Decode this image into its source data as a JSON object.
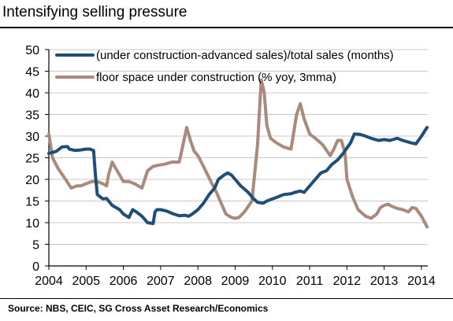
{
  "title": "Intensifying selling pressure",
  "source": "Source: NBS, CEIC, SG Cross Asset Research/Economics",
  "colors": {
    "series_blue": "#1f4e79",
    "series_brown": "#a98a7c",
    "grid": "#c8c8c8",
    "axis": "#000000"
  },
  "chart_data": {
    "type": "line",
    "title": "Intensifying selling pressure",
    "xlabel": "",
    "ylabel": "",
    "xlim": [
      2004.0,
      2014.17
    ],
    "ylim": [
      0,
      50
    ],
    "x_ticks": [
      "2004",
      "2005",
      "2006",
      "2007",
      "2008",
      "2009",
      "2010",
      "2011",
      "2012",
      "2013",
      "2014"
    ],
    "y_ticks": [
      "0",
      "5",
      "10",
      "15",
      "20",
      "25",
      "30",
      "35",
      "40",
      "45",
      "50"
    ],
    "grid": "horizontal",
    "legend_position": "top-left",
    "series": [
      {
        "name": "(under construction-advanced sales)/total sales (months)",
        "color": "#1f4e79",
        "x": [
          2004.0,
          2004.2,
          2004.35,
          2004.5,
          2004.55,
          2004.7,
          2004.85,
          2005.0,
          2005.1,
          2005.2,
          2005.25,
          2005.3,
          2005.45,
          2005.55,
          2005.7,
          2005.9,
          2006.0,
          2006.15,
          2006.25,
          2006.35,
          2006.5,
          2006.65,
          2006.8,
          2006.85,
          2006.9,
          2007.0,
          2007.15,
          2007.35,
          2007.5,
          2007.65,
          2007.75,
          2007.85,
          2008.0,
          2008.15,
          2008.3,
          2008.45,
          2008.55,
          2008.7,
          2008.8,
          2008.9,
          2009.0,
          2009.15,
          2009.35,
          2009.5,
          2009.6,
          2009.75,
          2009.85,
          2010.0,
          2010.1,
          2010.3,
          2010.5,
          2010.6,
          2010.75,
          2010.85,
          2011.0,
          2011.15,
          2011.3,
          2011.45,
          2011.6,
          2011.75,
          2011.9,
          2012.1,
          2012.2,
          2012.35,
          2012.5,
          2012.65,
          2012.85,
          2013.0,
          2013.15,
          2013.35,
          2013.5,
          2013.7,
          2013.85,
          2014.0,
          2014.15
        ],
        "values": [
          26.0,
          26.5,
          27.5,
          27.6,
          27.0,
          26.7,
          26.8,
          27.0,
          27.0,
          26.7,
          21.0,
          16.5,
          15.5,
          15.6,
          14.0,
          13.0,
          12.0,
          11.2,
          13.0,
          12.5,
          11.5,
          10.0,
          9.8,
          12.5,
          13.0,
          13.0,
          12.7,
          12.0,
          11.6,
          11.7,
          11.5,
          12.0,
          13.0,
          14.5,
          16.5,
          18.0,
          20.0,
          21.0,
          21.5,
          21.0,
          20.0,
          18.5,
          17.0,
          15.5,
          14.7,
          14.5,
          15.0,
          15.5,
          15.8,
          16.5,
          16.7,
          17.0,
          17.3,
          17.0,
          18.5,
          20.0,
          21.5,
          22.0,
          23.5,
          24.5,
          26.0,
          28.5,
          30.5,
          30.4,
          30.0,
          29.5,
          29.0,
          29.2,
          29.0,
          29.5,
          29.0,
          28.5,
          28.2,
          30.0,
          32.0
        ]
      },
      {
        "name": "floor space under construction (% yoy, 3mma)",
        "color": "#a98a7c",
        "x": [
          2004.0,
          2004.1,
          2004.25,
          2004.45,
          2004.6,
          2004.75,
          2004.85,
          2005.0,
          2005.15,
          2005.3,
          2005.45,
          2005.55,
          2005.6,
          2005.7,
          2005.8,
          2005.9,
          2006.0,
          2006.15,
          2006.3,
          2006.5,
          2006.65,
          2006.8,
          2006.95,
          2007.1,
          2007.3,
          2007.5,
          2007.6,
          2007.7,
          2007.8,
          2007.9,
          2008.0,
          2008.15,
          2008.35,
          2008.5,
          2008.65,
          2008.75,
          2008.9,
          2009.0,
          2009.1,
          2009.25,
          2009.45,
          2009.6,
          2009.7,
          2009.78,
          2009.85,
          2009.95,
          2010.1,
          2010.3,
          2010.5,
          2010.65,
          2010.75,
          2010.85,
          2011.0,
          2011.15,
          2011.35,
          2011.55,
          2011.65,
          2011.75,
          2011.85,
          2011.95,
          2012.0,
          2012.15,
          2012.3,
          2012.5,
          2012.65,
          2012.8,
          2012.9,
          2013.0,
          2013.1,
          2013.2,
          2013.35,
          2013.5,
          2013.65,
          2013.75,
          2013.85,
          2014.0,
          2014.15
        ],
        "values": [
          30.5,
          25.0,
          22.5,
          20.0,
          18.0,
          18.5,
          18.5,
          19.0,
          19.5,
          19.5,
          19.0,
          18.5,
          21.0,
          24.0,
          22.5,
          21.0,
          19.5,
          19.5,
          19.0,
          18.0,
          22.0,
          23.0,
          23.3,
          23.5,
          24.0,
          24.0,
          28.0,
          32.0,
          29.0,
          26.5,
          25.5,
          23.0,
          19.5,
          17.0,
          14.0,
          12.0,
          11.2,
          11.0,
          11.2,
          12.5,
          15.0,
          28.0,
          43.0,
          40.0,
          32.5,
          29.5,
          28.5,
          27.5,
          27.0,
          35.0,
          37.5,
          34.0,
          30.5,
          29.5,
          28.0,
          25.5,
          27.0,
          29.0,
          29.0,
          26.0,
          20.0,
          16.0,
          13.0,
          11.5,
          11.0,
          12.0,
          13.5,
          14.0,
          14.3,
          13.8,
          13.3,
          13.0,
          12.5,
          13.5,
          13.3,
          11.5,
          9.0
        ]
      }
    ]
  }
}
